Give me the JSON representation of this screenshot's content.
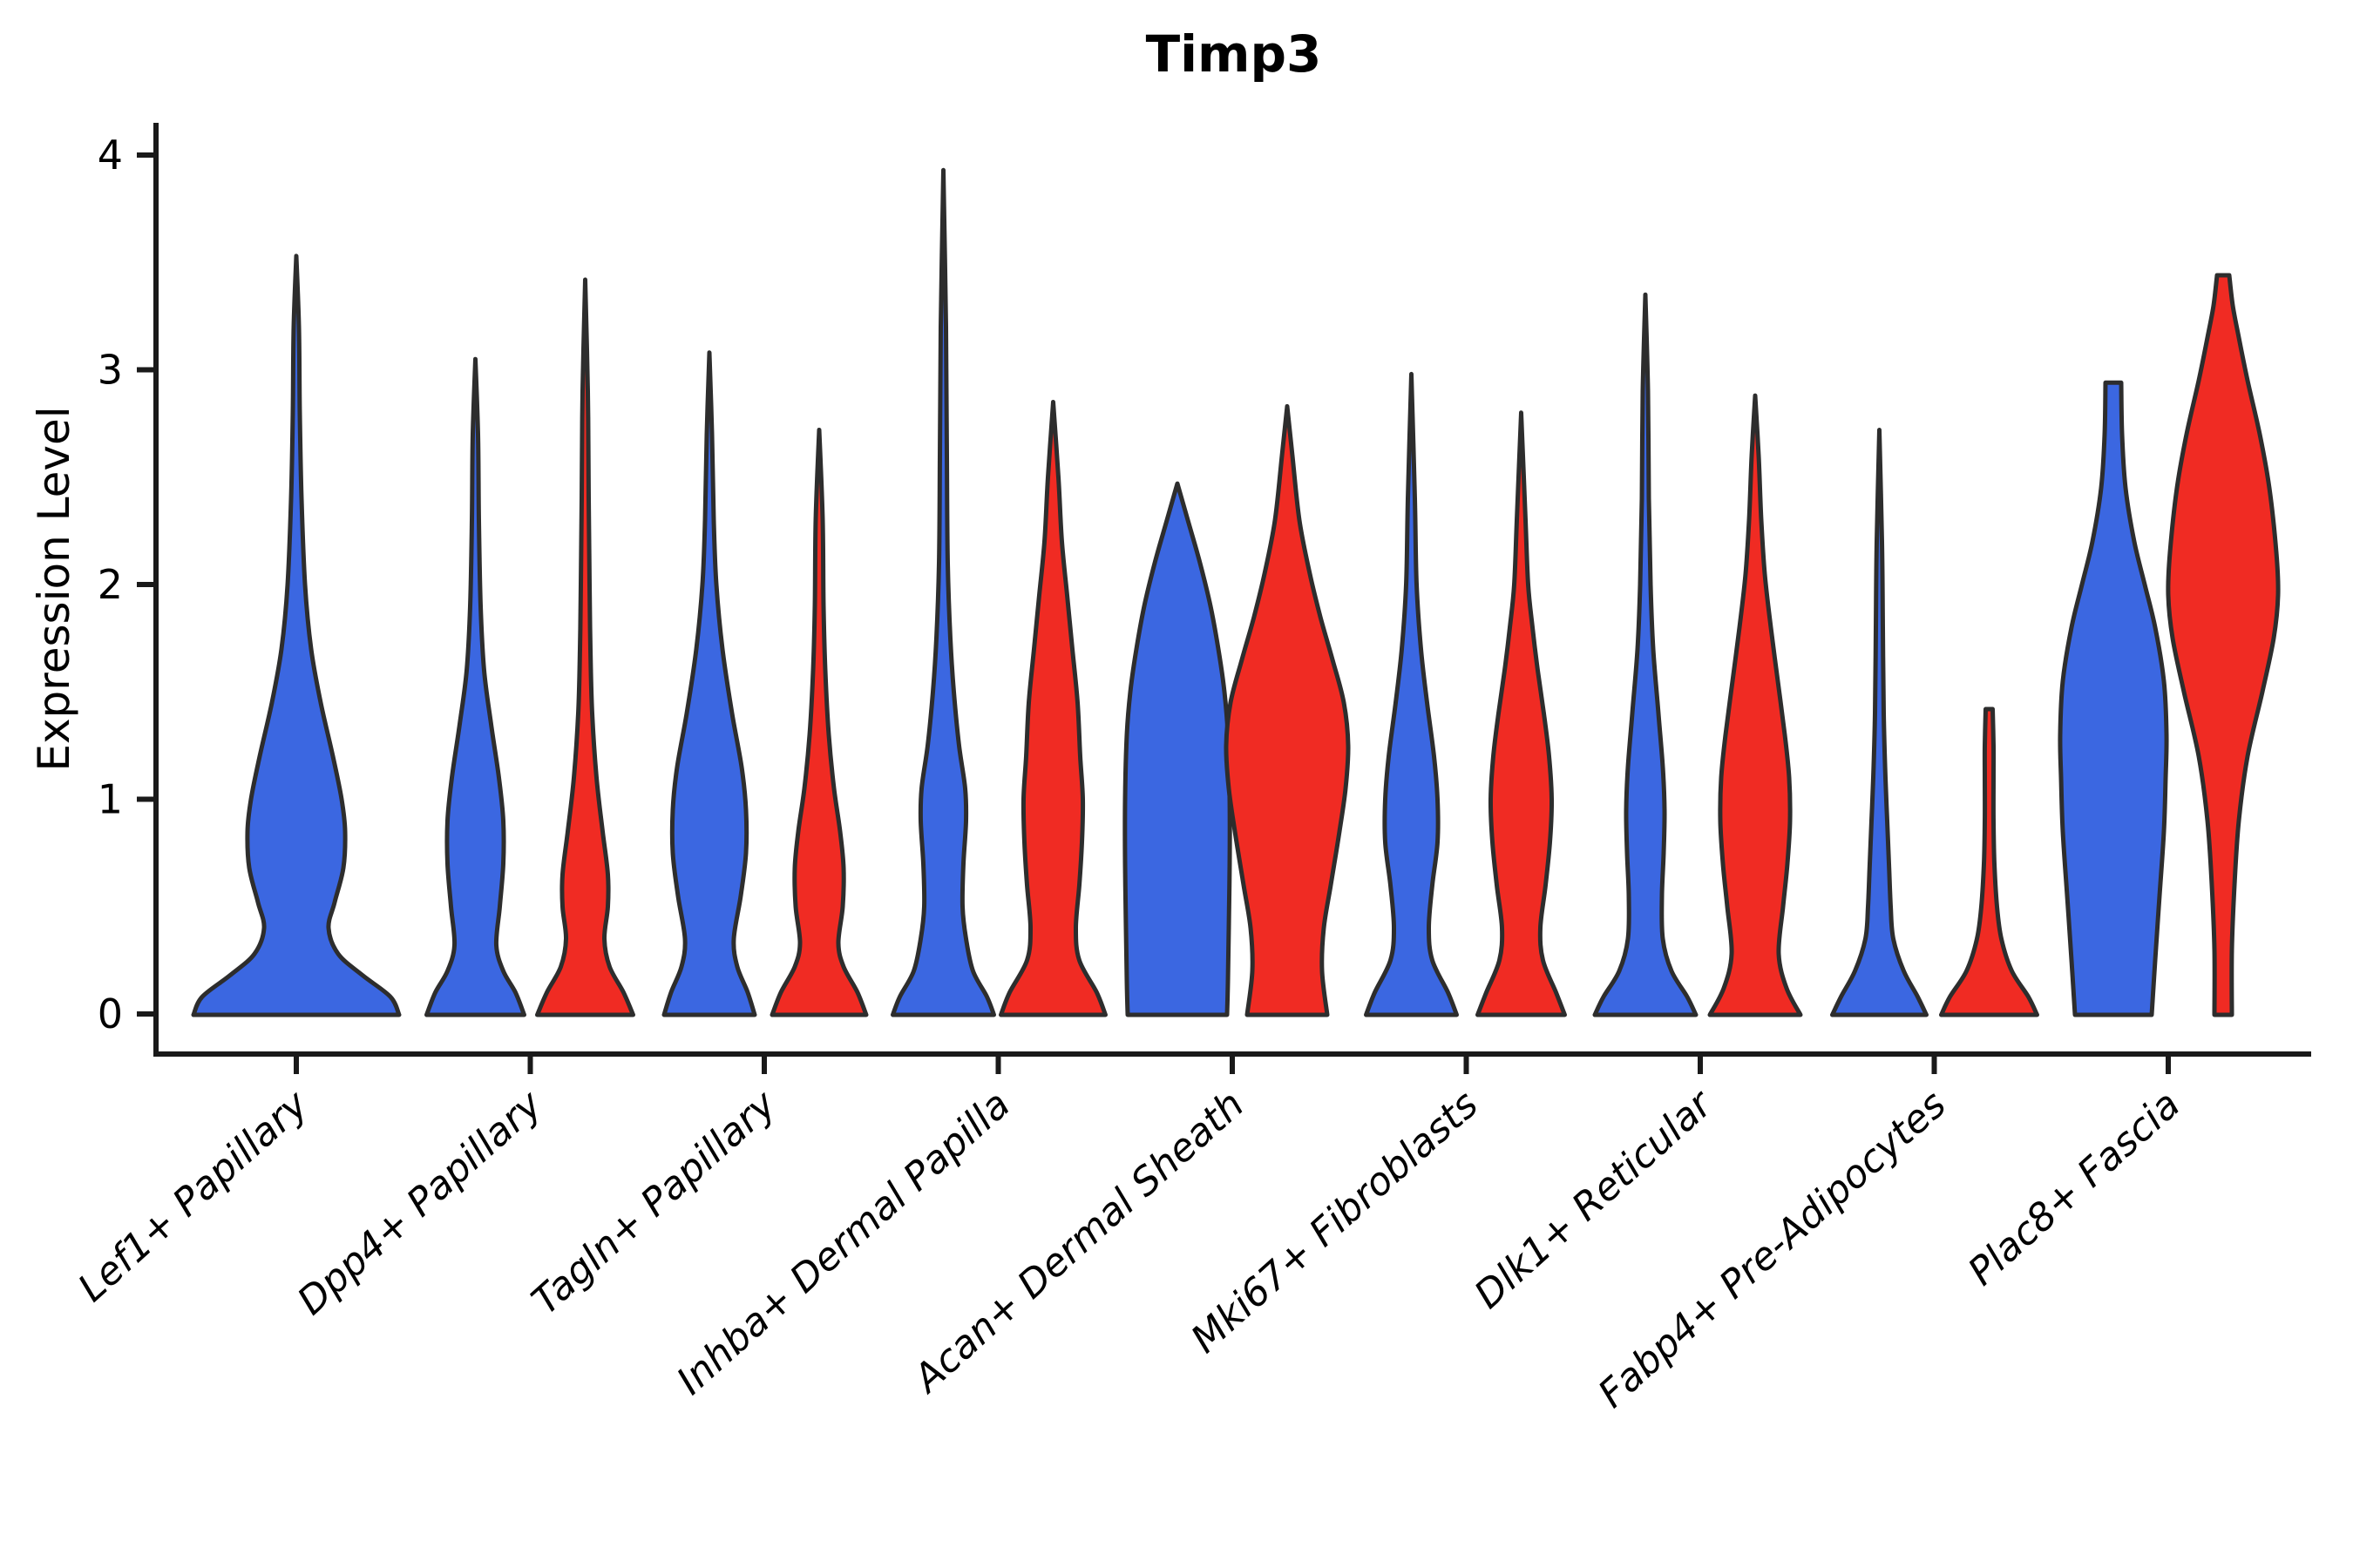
{
  "title": "Timp3",
  "y_axis_label": "Expression Level",
  "chart_data": {
    "type": "violin",
    "title": "Timp3",
    "xlabel": "",
    "ylabel": "Expression Level",
    "ylim": [
      -0.19,
      4.15
    ],
    "yticks": [
      0,
      1,
      2,
      3,
      4
    ],
    "grid": false,
    "legend_position": "none",
    "x_label_rotation_deg": 42,
    "colors": {
      "blue": "#3B67E1",
      "red": "#F02B23",
      "outline": "#2D2D2D",
      "axis": "#1A1A1A",
      "text": "#000000"
    },
    "categories": [
      "Lef1+ Papillary",
      "Dpp4+ Papillary",
      "Tagln+ Papillary",
      "Inhba+ Dermal Papilla",
      "Acan+ Dermal Sheath",
      "Mki67+ Fibroblasts",
      "Dlk1+ Reticular",
      "Fabp4+ Pre-Adipocytes",
      "Plac8+ Fascia"
    ],
    "series": [
      {
        "name": "blue",
        "max_expression": [
          3.53,
          3.05,
          3.08,
          3.93,
          2.47,
          2.98,
          3.35,
          2.72,
          2.94
        ]
      },
      {
        "name": "red",
        "max_expression": [
          null,
          3.42,
          2.72,
          2.85,
          2.83,
          2.8,
          2.88,
          1.42,
          3.44
        ]
      }
    ],
    "violins": [
      {
        "category_index": 0,
        "group": "blue",
        "span": "full",
        "profile": [
          [
            0,
            118
          ],
          [
            0.08,
            108
          ],
          [
            0.18,
            76
          ],
          [
            0.28,
            48
          ],
          [
            0.4,
            37
          ],
          [
            0.52,
            44
          ],
          [
            0.68,
            54
          ],
          [
            0.85,
            56
          ],
          [
            1.0,
            52
          ],
          [
            1.2,
            42
          ],
          [
            1.45,
            28
          ],
          [
            1.7,
            17
          ],
          [
            2.0,
            10
          ],
          [
            2.4,
            6
          ],
          [
            2.8,
            4
          ],
          [
            3.2,
            3
          ],
          [
            3.53,
            0
          ]
        ]
      },
      {
        "category_index": 1,
        "group": "blue",
        "span": "left",
        "profile": [
          [
            0,
            56
          ],
          [
            0.1,
            46
          ],
          [
            0.2,
            32
          ],
          [
            0.32,
            24
          ],
          [
            0.5,
            28
          ],
          [
            0.7,
            32
          ],
          [
            0.9,
            32
          ],
          [
            1.1,
            27
          ],
          [
            1.35,
            18
          ],
          [
            1.6,
            10
          ],
          [
            1.9,
            6
          ],
          [
            2.3,
            4
          ],
          [
            2.7,
            3
          ],
          [
            3.05,
            0
          ]
        ]
      },
      {
        "category_index": 1,
        "group": "red",
        "span": "right",
        "profile": [
          [
            0,
            55
          ],
          [
            0.1,
            44
          ],
          [
            0.22,
            28
          ],
          [
            0.35,
            22
          ],
          [
            0.5,
            26
          ],
          [
            0.65,
            26
          ],
          [
            0.85,
            20
          ],
          [
            1.1,
            13
          ],
          [
            1.4,
            8
          ],
          [
            1.7,
            6
          ],
          [
            2.0,
            5
          ],
          [
            2.4,
            4
          ],
          [
            2.9,
            3
          ],
          [
            3.42,
            0
          ]
        ]
      },
      {
        "category_index": 2,
        "group": "blue",
        "span": "left",
        "profile": [
          [
            0,
            52
          ],
          [
            0.1,
            44
          ],
          [
            0.22,
            32
          ],
          [
            0.35,
            28
          ],
          [
            0.55,
            36
          ],
          [
            0.75,
            42
          ],
          [
            0.95,
            42
          ],
          [
            1.15,
            37
          ],
          [
            1.4,
            26
          ],
          [
            1.7,
            15
          ],
          [
            2.0,
            8
          ],
          [
            2.3,
            5
          ],
          [
            2.7,
            3
          ],
          [
            3.08,
            0
          ]
        ]
      },
      {
        "category_index": 2,
        "group": "red",
        "span": "right",
        "profile": [
          [
            0,
            54
          ],
          [
            0.1,
            44
          ],
          [
            0.22,
            28
          ],
          [
            0.33,
            22
          ],
          [
            0.5,
            27
          ],
          [
            0.68,
            28
          ],
          [
            0.85,
            24
          ],
          [
            1.05,
            17
          ],
          [
            1.3,
            11
          ],
          [
            1.6,
            7
          ],
          [
            1.9,
            5
          ],
          [
            2.3,
            4
          ],
          [
            2.72,
            0
          ]
        ]
      },
      {
        "category_index": 3,
        "group": "blue",
        "span": "left",
        "profile": [
          [
            0,
            58
          ],
          [
            0.08,
            50
          ],
          [
            0.2,
            34
          ],
          [
            0.35,
            26
          ],
          [
            0.5,
            22
          ],
          [
            0.7,
            23
          ],
          [
            0.9,
            26
          ],
          [
            1.05,
            25
          ],
          [
            1.25,
            18
          ],
          [
            1.5,
            12
          ],
          [
            1.75,
            8
          ],
          [
            2.1,
            5
          ],
          [
            2.6,
            4
          ],
          [
            3.2,
            3
          ],
          [
            3.93,
            0
          ]
        ]
      },
      {
        "category_index": 3,
        "group": "red",
        "span": "right",
        "profile": [
          [
            0,
            60
          ],
          [
            0.1,
            50
          ],
          [
            0.25,
            30
          ],
          [
            0.4,
            26
          ],
          [
            0.6,
            30
          ],
          [
            0.8,
            33
          ],
          [
            1.0,
            34
          ],
          [
            1.2,
            31
          ],
          [
            1.45,
            28
          ],
          [
            1.7,
            22
          ],
          [
            1.95,
            16
          ],
          [
            2.2,
            10
          ],
          [
            2.5,
            6
          ],
          [
            2.85,
            0
          ]
        ]
      },
      {
        "category_index": 4,
        "group": "blue",
        "span": "left",
        "profile": [
          [
            0,
            57
          ],
          [
            0.15,
            58
          ],
          [
            0.4,
            59
          ],
          [
            0.7,
            60
          ],
          [
            1.0,
            60
          ],
          [
            1.3,
            58
          ],
          [
            1.5,
            54
          ],
          [
            1.7,
            47
          ],
          [
            1.9,
            38
          ],
          [
            2.1,
            26
          ],
          [
            2.3,
            12
          ],
          [
            2.47,
            0
          ]
        ]
      },
      {
        "category_index": 4,
        "group": "red",
        "span": "right",
        "profile": [
          [
            0,
            46
          ],
          [
            0.2,
            40
          ],
          [
            0.4,
            42
          ],
          [
            0.6,
            50
          ],
          [
            0.85,
            60
          ],
          [
            1.05,
            67
          ],
          [
            1.25,
            70
          ],
          [
            1.45,
            65
          ],
          [
            1.65,
            52
          ],
          [
            1.85,
            38
          ],
          [
            2.05,
            26
          ],
          [
            2.3,
            14
          ],
          [
            2.6,
            6
          ],
          [
            2.83,
            0
          ]
        ]
      },
      {
        "category_index": 5,
        "group": "blue",
        "span": "left",
        "profile": [
          [
            0,
            52
          ],
          [
            0.1,
            42
          ],
          [
            0.25,
            24
          ],
          [
            0.4,
            20
          ],
          [
            0.6,
            24
          ],
          [
            0.8,
            30
          ],
          [
            1.0,
            30
          ],
          [
            1.2,
            26
          ],
          [
            1.45,
            18
          ],
          [
            1.7,
            11
          ],
          [
            2.0,
            6
          ],
          [
            2.4,
            4
          ],
          [
            2.98,
            0
          ]
        ]
      },
      {
        "category_index": 5,
        "group": "red",
        "span": "right",
        "profile": [
          [
            0,
            50
          ],
          [
            0.1,
            40
          ],
          [
            0.25,
            25
          ],
          [
            0.4,
            22
          ],
          [
            0.6,
            28
          ],
          [
            0.8,
            33
          ],
          [
            1.0,
            35
          ],
          [
            1.2,
            32
          ],
          [
            1.4,
            26
          ],
          [
            1.6,
            19
          ],
          [
            1.8,
            13
          ],
          [
            2.0,
            8
          ],
          [
            2.3,
            5
          ],
          [
            2.8,
            0
          ]
        ]
      },
      {
        "category_index": 6,
        "group": "blue",
        "span": "left",
        "profile": [
          [
            0,
            58
          ],
          [
            0.08,
            48
          ],
          [
            0.2,
            30
          ],
          [
            0.35,
            20
          ],
          [
            0.55,
            19
          ],
          [
            0.75,
            21
          ],
          [
            0.95,
            22
          ],
          [
            1.15,
            20
          ],
          [
            1.4,
            15
          ],
          [
            1.7,
            9
          ],
          [
            2.0,
            6
          ],
          [
            2.4,
            4
          ],
          [
            2.9,
            3
          ],
          [
            3.35,
            0
          ]
        ]
      },
      {
        "category_index": 6,
        "group": "red",
        "span": "right",
        "profile": [
          [
            0,
            52
          ],
          [
            0.12,
            36
          ],
          [
            0.28,
            27
          ],
          [
            0.5,
            32
          ],
          [
            0.7,
            37
          ],
          [
            0.9,
            40
          ],
          [
            1.1,
            39
          ],
          [
            1.3,
            34
          ],
          [
            1.55,
            26
          ],
          [
            1.8,
            18
          ],
          [
            2.05,
            11
          ],
          [
            2.3,
            7
          ],
          [
            2.6,
            4
          ],
          [
            2.88,
            0
          ]
        ]
      },
      {
        "category_index": 7,
        "group": "blue",
        "span": "left",
        "profile": [
          [
            0,
            54
          ],
          [
            0.08,
            44
          ],
          [
            0.2,
            28
          ],
          [
            0.35,
            16
          ],
          [
            0.5,
            13
          ],
          [
            0.7,
            11
          ],
          [
            0.9,
            9
          ],
          [
            1.1,
            7
          ],
          [
            1.4,
            5
          ],
          [
            1.8,
            4
          ],
          [
            2.2,
            3
          ],
          [
            2.72,
            0
          ]
        ]
      },
      {
        "category_index": 7,
        "group": "red",
        "span": "right",
        "profile": [
          [
            0,
            55
          ],
          [
            0.08,
            45
          ],
          [
            0.2,
            26
          ],
          [
            0.35,
            14
          ],
          [
            0.5,
            9
          ],
          [
            0.7,
            6
          ],
          [
            0.9,
            5
          ],
          [
            1.1,
            5
          ],
          [
            1.25,
            5
          ],
          [
            1.42,
            4
          ]
        ]
      },
      {
        "category_index": 8,
        "group": "blue",
        "span": "left",
        "profile": [
          [
            0,
            44
          ],
          [
            0.25,
            48
          ],
          [
            0.55,
            53
          ],
          [
            0.85,
            58
          ],
          [
            1.1,
            60
          ],
          [
            1.3,
            61
          ],
          [
            1.55,
            58
          ],
          [
            1.8,
            48
          ],
          [
            2.0,
            36
          ],
          [
            2.2,
            24
          ],
          [
            2.45,
            14
          ],
          [
            2.7,
            10
          ],
          [
            2.94,
            9
          ]
        ]
      },
      {
        "category_index": 8,
        "group": "red",
        "span": "right",
        "profile": [
          [
            0,
            10
          ],
          [
            0.3,
            10
          ],
          [
            0.6,
            13
          ],
          [
            0.9,
            18
          ],
          [
            1.2,
            28
          ],
          [
            1.5,
            45
          ],
          [
            1.75,
            58
          ],
          [
            1.95,
            63
          ],
          [
            2.15,
            61
          ],
          [
            2.45,
            53
          ],
          [
            2.7,
            42
          ],
          [
            2.95,
            28
          ],
          [
            3.15,
            18
          ],
          [
            3.3,
            11
          ],
          [
            3.44,
            7
          ]
        ]
      }
    ]
  }
}
